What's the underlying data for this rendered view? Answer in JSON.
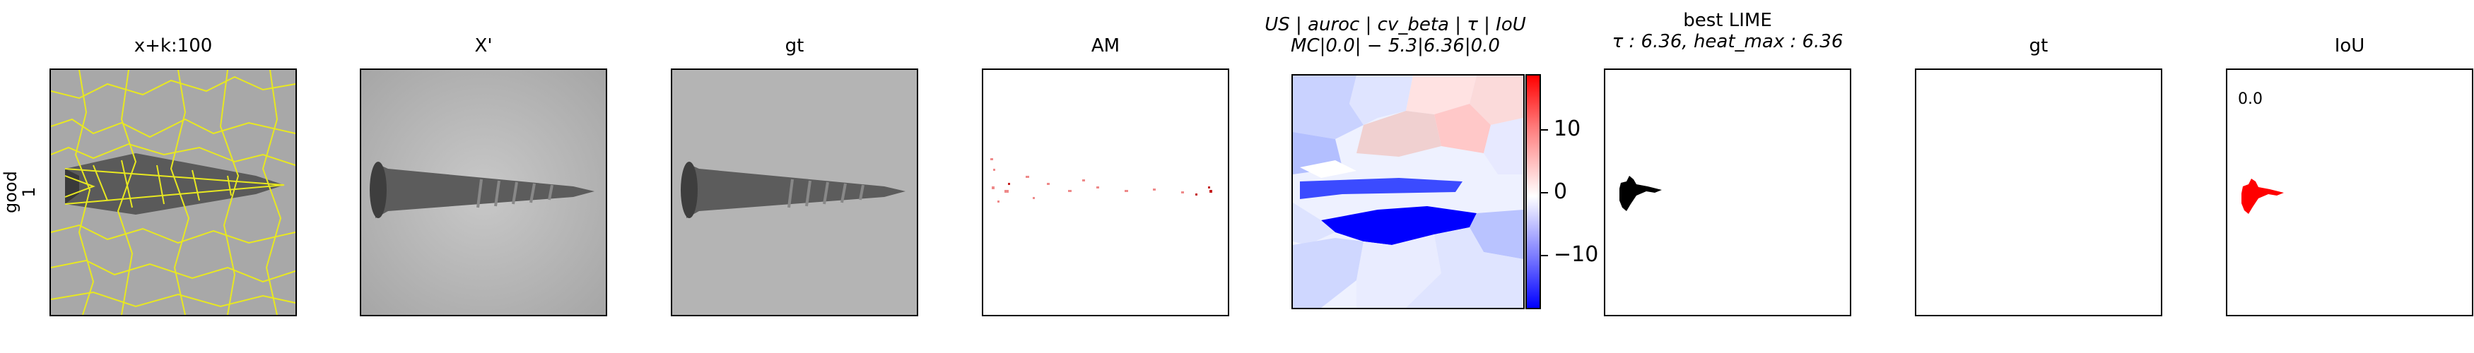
{
  "row_label": {
    "line1": "good",
    "line2": "1"
  },
  "panels": [
    {
      "title": "x+k:100"
    },
    {
      "title": "X'"
    },
    {
      "title": "gt"
    },
    {
      "title": "AM"
    },
    {
      "title_line1": "US | auroc | cv_beta | τ | IoU",
      "title_line2": "MC|0.0| − 5.3|6.36|0.0"
    },
    {
      "title_line1": "best LIME",
      "title_line2": "τ : 6.36, heat_max : 6.36"
    },
    {
      "title": "gt"
    },
    {
      "title": "IoU",
      "value": "0.0"
    }
  ],
  "colorbar": {
    "ticks": [
      "10",
      "0",
      "−10"
    ],
    "high_color": "#ff0000",
    "low_color": "#0000ff"
  },
  "colors": {
    "superpixel_boundary": "#e8e820",
    "iou_mask": "#ff0000",
    "lime_mask": "#000000"
  }
}
